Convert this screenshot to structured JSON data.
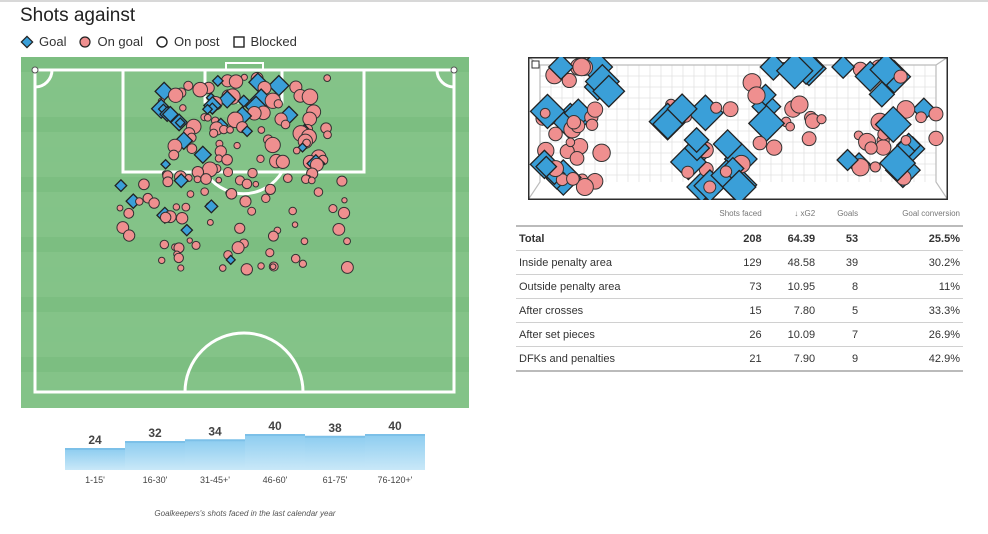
{
  "title": "Shots against",
  "legend": [
    {
      "label": "Goal",
      "icon": "diamond-icon"
    },
    {
      "label": "On goal",
      "icon": "circle-icon"
    },
    {
      "label": "On post",
      "icon": "hollow-circle-icon"
    },
    {
      "label": "Blocked",
      "icon": "square-icon"
    }
  ],
  "colors": {
    "goal": "#3a9fd8",
    "on_goal": "#ef8f8f",
    "pitch_dark": "#76b97b",
    "pitch_light": "#84c388",
    "bar_top": "#8ecdf0",
    "bar_bottom": "#c9e8f8"
  },
  "stats_table": {
    "columns": [
      "Shots faced",
      "↓ xG2",
      "Goals",
      "Goal conversion"
    ],
    "rows": [
      {
        "label": "Total",
        "shots": "208",
        "xg2": "64.39",
        "goals": "53",
        "conversion": "25.5%"
      },
      {
        "label": "Inside penalty area",
        "shots": "129",
        "xg2": "48.58",
        "goals": "39",
        "conversion": "30.2%"
      },
      {
        "label": "Outside penalty area",
        "shots": "73",
        "xg2": "10.95",
        "goals": "8",
        "conversion": "11%"
      },
      {
        "label": "After crosses",
        "shots": "15",
        "xg2": "7.80",
        "goals": "5",
        "conversion": "33.3%"
      },
      {
        "label": "After set pieces",
        "shots": "26",
        "xg2": "10.09",
        "goals": "7",
        "conversion": "26.9%"
      },
      {
        "label": "DFKs and penalties",
        "shots": "21",
        "xg2": "7.90",
        "goals": "9",
        "conversion": "42.9%"
      }
    ]
  },
  "caption": "Goalkeepers's shots faced in the last calendar year",
  "chart_data": [
    {
      "type": "bar",
      "categories": [
        "1-15'",
        "16-30'",
        "31-45+'",
        "46-60'",
        "61-75'",
        "76-120+'"
      ],
      "values": [
        24,
        32,
        34,
        40,
        38,
        40
      ],
      "ylim": [
        0,
        40
      ]
    }
  ]
}
